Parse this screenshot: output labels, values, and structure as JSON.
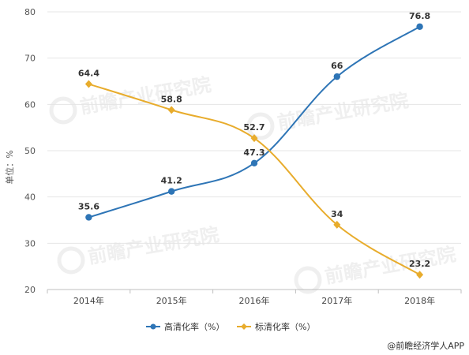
{
  "chart_data": {
    "type": "line",
    "categories": [
      "2014年",
      "2015年",
      "2016年",
      "2017年",
      "2018年"
    ],
    "ylabel": "单位：%",
    "ylim": [
      20,
      80
    ],
    "yticks": [
      "20",
      "30",
      "40",
      "50",
      "60",
      "70",
      "80"
    ],
    "grid": true,
    "legend_position": "bottom",
    "series": [
      {
        "name": "高清化率（%）",
        "color": "#2e75b6",
        "marker": "circle",
        "values": [
          35.6,
          41.2,
          47.3,
          66,
          76.8
        ],
        "labels": [
          "35.6",
          "41.2",
          "47.3",
          "66",
          "76.8"
        ]
      },
      {
        "name": "标清化率（%）",
        "color": "#e8ac2c",
        "marker": "diamond",
        "values": [
          64.4,
          58.8,
          52.7,
          34,
          23.2
        ],
        "labels": [
          "64.4",
          "58.8",
          "52.7",
          "34",
          "23.2"
        ]
      }
    ]
  },
  "watermark": {
    "text": "前瞻产业研究院"
  },
  "footer": {
    "source_text": "@前瞻经济学人APP"
  }
}
